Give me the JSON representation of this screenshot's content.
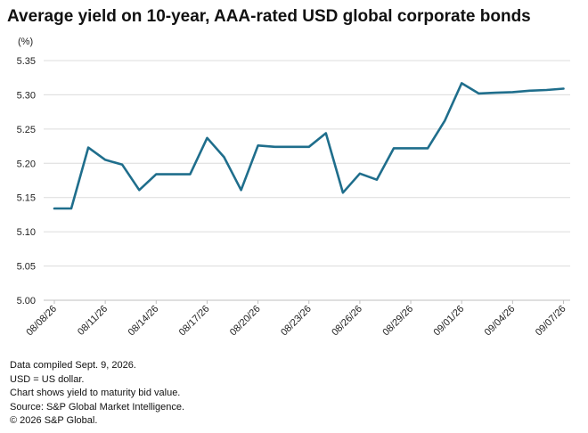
{
  "chart_data": {
    "type": "line",
    "title": "Average yield on 10-year, AAA-rated USD global corporate bonds",
    "ylabel": "(%)",
    "xlabel": "",
    "ylim": [
      5.0,
      5.35
    ],
    "yticks": [
      5.0,
      5.05,
      5.1,
      5.15,
      5.2,
      5.25,
      5.3,
      5.35
    ],
    "ytick_labels": [
      "5.00",
      "5.05",
      "5.10",
      "5.15",
      "5.20",
      "5.25",
      "5.30",
      "5.35"
    ],
    "grid": "horizontal",
    "line_color": "#1f6e8c",
    "x": [
      "08/08/26",
      "08/09/26",
      "08/10/26",
      "08/11/26",
      "08/12/26",
      "08/13/26",
      "08/14/26",
      "08/15/26",
      "08/16/26",
      "08/17/26",
      "08/18/26",
      "08/19/26",
      "08/20/26",
      "08/21/26",
      "08/22/26",
      "08/23/26",
      "08/24/26",
      "08/25/26",
      "08/26/26",
      "08/27/26",
      "08/28/26",
      "08/29/26",
      "08/30/26",
      "08/31/26",
      "09/01/26",
      "09/02/26",
      "09/03/26",
      "09/04/26",
      "09/05/26",
      "09/06/26",
      "09/07/26"
    ],
    "xtick_labels": [
      "08/08/26",
      "08/11/26",
      "08/14/26",
      "08/17/26",
      "08/20/26",
      "08/23/26",
      "08/26/26",
      "08/29/26",
      "09/01/26",
      "09/04/26",
      "09/07/26"
    ],
    "series": [
      {
        "values": [
          5.134,
          5.134,
          5.223,
          5.205,
          5.198,
          5.161,
          5.184,
          5.184,
          5.184,
          5.237,
          5.209,
          5.161,
          5.226,
          5.224,
          5.224,
          5.224,
          5.244,
          5.157,
          5.185,
          5.176,
          5.222,
          5.222,
          5.222,
          5.262,
          5.317,
          5.302,
          5.303,
          5.304,
          5.306,
          5.307,
          5.309
        ],
        "gaps_connected": [
          25,
          29
        ]
      }
    ]
  },
  "notes": [
    "Data compiled Sept. 9, 2026.",
    "USD = US dollar.",
    "Chart shows yield to maturity bid value.",
    "Source: S&P Global Market Intelligence.",
    "© 2026 S&P Global."
  ]
}
